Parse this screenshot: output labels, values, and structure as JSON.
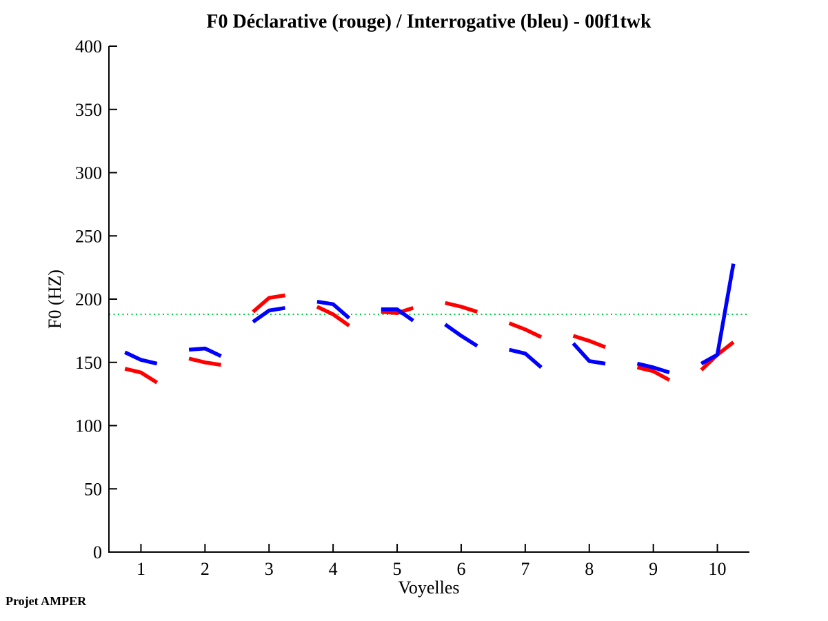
{
  "credit": "Projet AMPER",
  "chart_data": {
    "type": "line",
    "title": "F0 Déclarative (rouge) / Interrogative (bleu) - 00f1twk",
    "xlabel": "Voyelles",
    "ylabel": "F0 (HZ)",
    "xlim": [
      0.5,
      10.5
    ],
    "ylim": [
      0,
      400
    ],
    "xticks": [
      1,
      2,
      3,
      4,
      5,
      6,
      7,
      8,
      9,
      10
    ],
    "yticks": [
      0,
      50,
      100,
      150,
      200,
      250,
      300,
      350,
      400
    ],
    "grid": false,
    "legend_position": "none",
    "axis_color": "#000000",
    "line_width": 5.5,
    "reference_line": {
      "y": 188,
      "color": "#00cc44",
      "style": "dotted"
    },
    "segment_x_offsets": [
      -0.25,
      0,
      0.25
    ],
    "series": [
      {
        "name": "Déclarative (rouge)",
        "color": "#ff0000",
        "segments": [
          [
            145,
            142,
            134
          ],
          [
            153,
            150,
            148
          ],
          [
            190,
            201,
            203
          ],
          [
            194,
            188,
            179
          ],
          [
            190,
            189,
            193
          ],
          [
            197,
            194,
            190
          ],
          [
            181,
            176,
            170
          ],
          [
            171,
            167,
            162
          ],
          [
            146,
            143,
            136
          ],
          [
            144,
            156,
            166
          ]
        ]
      },
      {
        "name": "Interrogative (bleu)",
        "color": "#0000ff",
        "segments": [
          [
            158,
            152,
            149
          ],
          [
            160,
            161,
            155
          ],
          [
            182,
            191,
            193
          ],
          [
            198,
            196,
            185
          ],
          [
            192,
            192,
            183
          ],
          [
            180,
            171,
            163
          ],
          [
            160,
            157,
            146
          ],
          [
            165,
            151,
            149
          ],
          [
            149,
            146,
            142
          ],
          [
            149,
            156,
            228
          ]
        ]
      }
    ]
  }
}
